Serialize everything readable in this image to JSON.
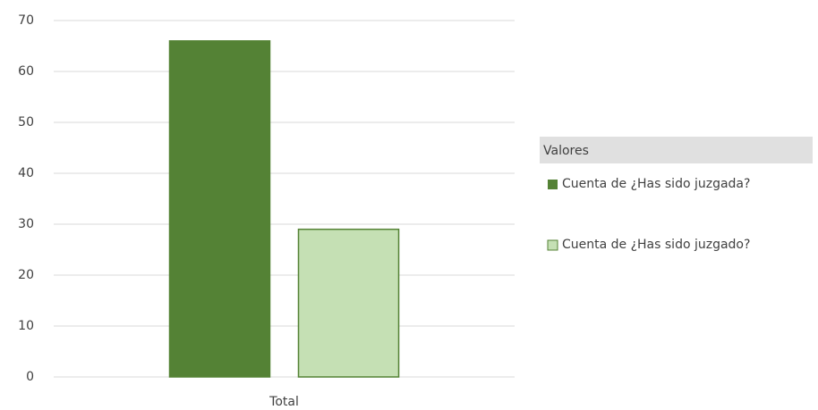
{
  "chart_data": {
    "type": "bar",
    "categories": [
      "Total"
    ],
    "series": [
      {
        "name": "Cuenta de ¿Has sido juzgada?",
        "color": "#548235",
        "values": [
          66
        ]
      },
      {
        "name": "Cuenta de ¿Has sido juzgado?",
        "color": "#c5e0b4",
        "values": [
          29
        ]
      }
    ],
    "bar_border": "#548235",
    "legend_title": "Valores",
    "legend": "right",
    "ylim": [
      0,
      70
    ],
    "yticks": [
      0,
      10,
      20,
      30,
      40,
      50,
      60,
      70
    ],
    "grid": true
  }
}
